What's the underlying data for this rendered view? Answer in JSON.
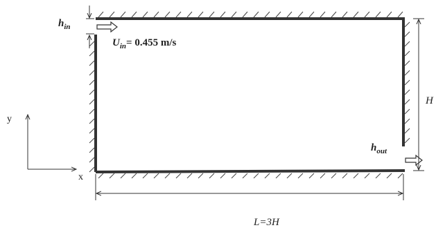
{
  "labels": {
    "h_in": {
      "base": "h",
      "sub": "in"
    },
    "u_in": {
      "base": "U",
      "sub": "in",
      "text": "= 0.455 m/s"
    },
    "height": "H",
    "h_out": {
      "base": "h",
      "sub": "out"
    },
    "axis_y": "y",
    "axis_x": "x",
    "length": "L=3H"
  }
}
